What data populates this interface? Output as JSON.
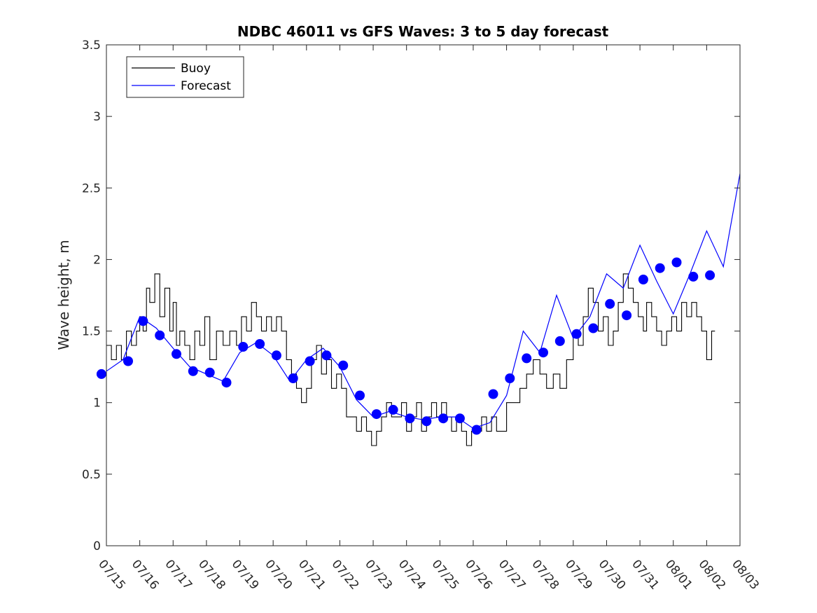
{
  "chart_data": {
    "type": "line",
    "title": "NDBC 46011 vs GFS Waves: 3 to 5 day forecast",
    "xlabel": "",
    "ylabel": "Wave height, m",
    "xlim": [
      "07/15",
      "08/03"
    ],
    "ylim": [
      0,
      3.5
    ],
    "x_tick_labels": [
      "07/15",
      "07/16",
      "07/17",
      "07/18",
      "07/19",
      "07/20",
      "07/21",
      "07/22",
      "07/23",
      "07/24",
      "07/25",
      "07/26",
      "07/27",
      "07/28",
      "07/29",
      "07/30",
      "07/31",
      "08/01",
      "08/02",
      "08/03"
    ],
    "y_ticks": [
      0,
      0.5,
      1,
      1.5,
      2,
      2.5,
      3,
      3.5
    ],
    "y_tick_labels": [
      "0",
      "0.5",
      "1",
      "1.5",
      "2",
      "2.5",
      "3",
      "3.5"
    ],
    "grid": false,
    "legend_placement": "top-left",
    "legend": [
      {
        "label": "Buoy",
        "color": "#000000"
      },
      {
        "label": "Forecast",
        "color": "#0000ff"
      }
    ],
    "colors": {
      "buoy": "#000000",
      "forecast": "#0000ff",
      "markers": "#0000ff"
    },
    "series": [
      {
        "name": "Buoy",
        "color": "#000000",
        "x_days": [
          0,
          0.15,
          0.3,
          0.45,
          0.6,
          0.75,
          0.9,
          1.0,
          1.1,
          1.2,
          1.3,
          1.45,
          1.6,
          1.75,
          1.9,
          2.0,
          2.1,
          2.2,
          2.35,
          2.5,
          2.65,
          2.8,
          2.95,
          3.1,
          3.3,
          3.5,
          3.7,
          3.9,
          4.05,
          4.2,
          4.35,
          4.5,
          4.65,
          4.8,
          4.95,
          5.1,
          5.25,
          5.4,
          5.55,
          5.7,
          5.85,
          6.0,
          6.15,
          6.3,
          6.45,
          6.6,
          6.75,
          6.9,
          7.05,
          7.2,
          7.35,
          7.5,
          7.65,
          7.8,
          7.95,
          8.1,
          8.25,
          8.4,
          8.55,
          8.7,
          8.85,
          9.0,
          9.15,
          9.3,
          9.45,
          9.6,
          9.75,
          9.9,
          10.05,
          10.2,
          10.35,
          10.5,
          10.65,
          10.8,
          10.95,
          11.1,
          11.25,
          11.4,
          11.55,
          11.7,
          11.85,
          12.0,
          12.2,
          12.4,
          12.6,
          12.8,
          13.0,
          13.2,
          13.4,
          13.6,
          13.8,
          14.0,
          14.15,
          14.3,
          14.45,
          14.6,
          14.75,
          14.9,
          15.05,
          15.2,
          15.35,
          15.5,
          15.65,
          15.8,
          15.95,
          16.1,
          16.2,
          16.35,
          16.5,
          16.65,
          16.8,
          16.95,
          17.1,
          17.25,
          17.4,
          17.55,
          17.7,
          17.85,
          18.0,
          18.15,
          18.25
        ],
        "y": [
          1.4,
          1.3,
          1.4,
          1.3,
          1.5,
          1.4,
          1.5,
          1.6,
          1.5,
          1.8,
          1.7,
          1.9,
          1.6,
          1.8,
          1.5,
          1.7,
          1.4,
          1.5,
          1.4,
          1.3,
          1.5,
          1.4,
          1.6,
          1.3,
          1.5,
          1.4,
          1.5,
          1.4,
          1.6,
          1.5,
          1.7,
          1.6,
          1.5,
          1.6,
          1.5,
          1.6,
          1.5,
          1.3,
          1.2,
          1.1,
          1.0,
          1.1,
          1.3,
          1.4,
          1.2,
          1.3,
          1.1,
          1.2,
          1.1,
          0.9,
          0.9,
          0.8,
          0.9,
          0.8,
          0.7,
          0.8,
          0.9,
          1.0,
          0.9,
          0.9,
          1.0,
          0.8,
          0.9,
          1.0,
          0.8,
          0.9,
          1.0,
          0.9,
          1.0,
          0.9,
          0.8,
          0.9,
          0.8,
          0.7,
          0.8,
          0.8,
          0.9,
          0.8,
          0.9,
          0.8,
          0.8,
          1.0,
          1.0,
          1.1,
          1.2,
          1.3,
          1.2,
          1.1,
          1.2,
          1.1,
          1.3,
          1.5,
          1.4,
          1.6,
          1.8,
          1.7,
          1.5,
          1.6,
          1.4,
          1.5,
          1.7,
          1.9,
          1.8,
          1.7,
          1.6,
          1.5,
          1.7,
          1.6,
          1.5,
          1.4,
          1.5,
          1.6,
          1.5,
          1.7,
          1.6,
          1.7,
          1.6,
          1.5,
          1.3,
          1.5,
          1.5
        ]
      },
      {
        "name": "Forecast",
        "color": "#0000ff",
        "x_days": [
          0,
          0.5,
          1.0,
          1.5,
          2.0,
          2.5,
          3.0,
          3.5,
          4.0,
          4.5,
          5.0,
          5.5,
          6.0,
          6.5,
          7.0,
          7.5,
          8.0,
          8.5,
          9.0,
          9.5,
          10.0,
          10.5,
          11.0,
          11.5,
          12.0,
          12.5,
          13.0,
          13.5,
          14.0,
          14.5,
          15.0,
          15.5,
          16.0,
          16.5,
          17.0,
          17.5,
          18.0,
          18.5,
          19.0
        ],
        "y": [
          1.22,
          1.3,
          1.6,
          1.52,
          1.38,
          1.25,
          1.2,
          1.15,
          1.35,
          1.42,
          1.33,
          1.15,
          1.3,
          1.38,
          1.25,
          1.02,
          0.9,
          0.94,
          0.9,
          0.88,
          0.9,
          0.9,
          0.82,
          0.86,
          1.05,
          1.5,
          1.35,
          1.75,
          1.45,
          1.6,
          1.9,
          1.8,
          2.1,
          1.85,
          1.62,
          1.9,
          2.2,
          1.95,
          2.6
        ]
      }
    ],
    "markers": {
      "x_days": [
        -0.15,
        0.65,
        1.1,
        1.6,
        2.1,
        2.6,
        3.1,
        3.6,
        4.1,
        4.6,
        5.1,
        5.6,
        6.1,
        6.6,
        7.1,
        7.6,
        8.1,
        8.6,
        9.1,
        9.6,
        10.1,
        10.6,
        11.1,
        11.6,
        12.1,
        12.6,
        13.1,
        13.6,
        14.1,
        14.6,
        15.1,
        15.6,
        16.1,
        16.6,
        17.1,
        17.6,
        18.1
      ],
      "y": [
        1.2,
        1.29,
        1.57,
        1.47,
        1.34,
        1.22,
        1.21,
        1.14,
        1.39,
        1.41,
        1.33,
        1.17,
        1.29,
        1.33,
        1.26,
        1.05,
        0.92,
        0.95,
        0.89,
        0.87,
        0.89,
        0.89,
        0.81,
        1.06,
        1.17,
        1.31,
        1.35,
        1.43,
        1.48,
        1.52,
        1.69,
        1.61,
        1.86,
        1.94,
        1.98,
        1.88,
        1.89
      ]
    }
  }
}
